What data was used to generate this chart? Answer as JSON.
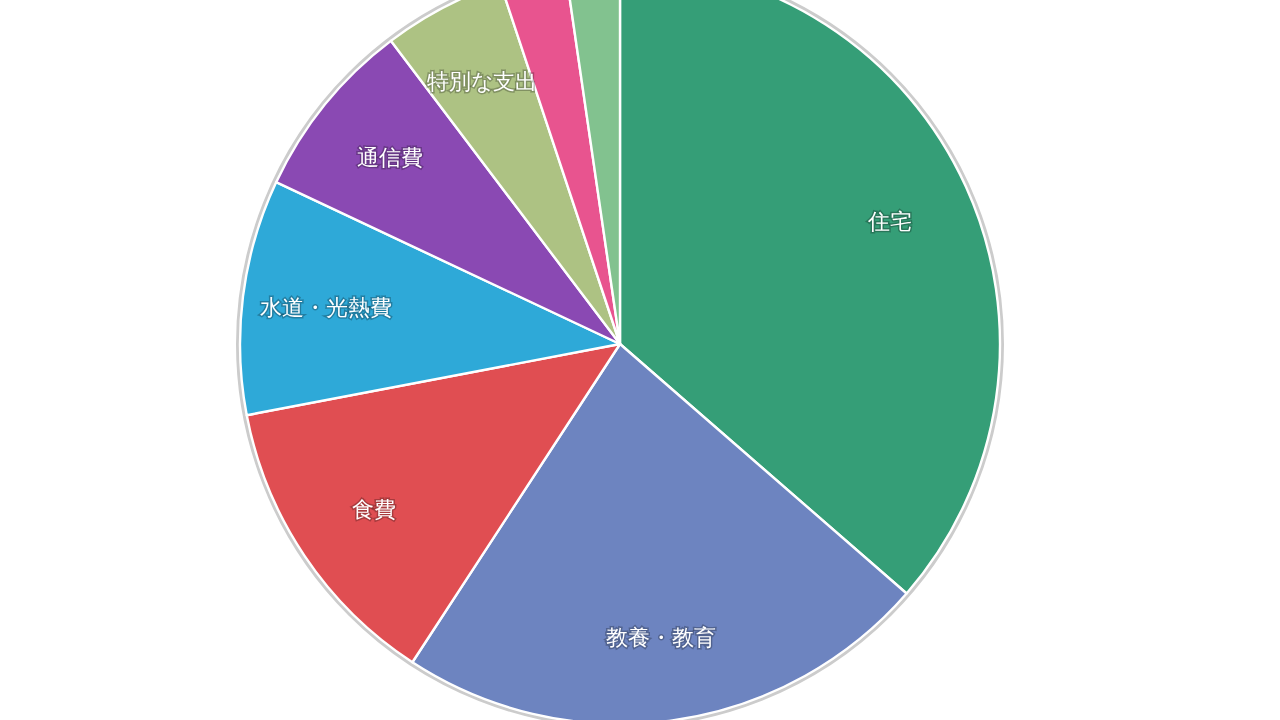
{
  "chart_data": {
    "type": "pie",
    "categories": [
      "住宅",
      "教養・教育",
      "食費",
      "水道・光熱費",
      "通信費",
      "特別な支出",
      null,
      null
    ],
    "values": [
      36.4,
      22.8,
      12.8,
      10.0,
      7.7,
      5.2,
      2.8,
      2.3
    ],
    "colors": [
      "#359e77",
      "#6d84c0",
      "#e04e52",
      "#2ea9d8",
      "#8a49b3",
      "#adc283",
      "#e8548f",
      "#82c28f"
    ],
    "legend": false
  }
}
